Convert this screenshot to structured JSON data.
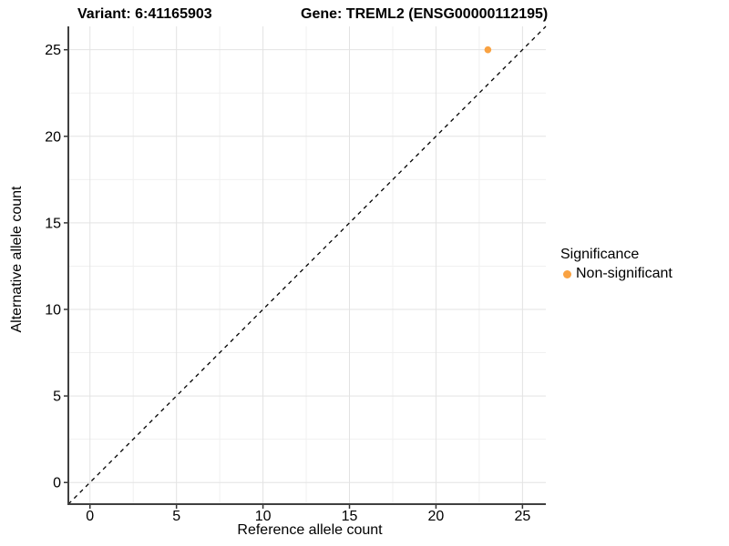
{
  "titles": {
    "variant": "Variant: 6:41165903",
    "gene": "Gene: TREML2 (ENSG00000112195)"
  },
  "legend": {
    "title": "Significance",
    "items": [
      {
        "label": "Non-significant",
        "color": "#F9A242"
      }
    ]
  },
  "chart_data": {
    "type": "scatter",
    "title": "Variant: 6:41165903 — Gene: TREML2 (ENSG00000112195)",
    "xlabel": "Reference allele count",
    "ylabel": "Alternative allele count",
    "xlim": [
      -1.25,
      26.35
    ],
    "ylim": [
      -1.25,
      26.35
    ],
    "x_ticks": [
      0,
      5,
      10,
      15,
      20,
      25
    ],
    "y_ticks": [
      0,
      5,
      10,
      15,
      20,
      25
    ],
    "x_minor_ticks": [
      2.5,
      7.5,
      12.5,
      17.5,
      22.5
    ],
    "y_minor_ticks": [
      2.5,
      7.5,
      12.5,
      17.5,
      22.5
    ],
    "grid": true,
    "legend_position": "right",
    "legend_title": "Significance",
    "series": [
      {
        "name": "Non-significant",
        "color": "#F9A242",
        "points": [
          [
            23,
            25
          ]
        ]
      }
    ],
    "reference_line": {
      "type": "identity y=x",
      "stroke": "dashed",
      "color": "#000000"
    },
    "colors": {
      "grid_major": "#e3e3e3",
      "grid_minor": "#f0f0f0",
      "axis_line": "#404040",
      "tick": "#333333",
      "text": "#000000",
      "background": "#ffffff"
    }
  }
}
